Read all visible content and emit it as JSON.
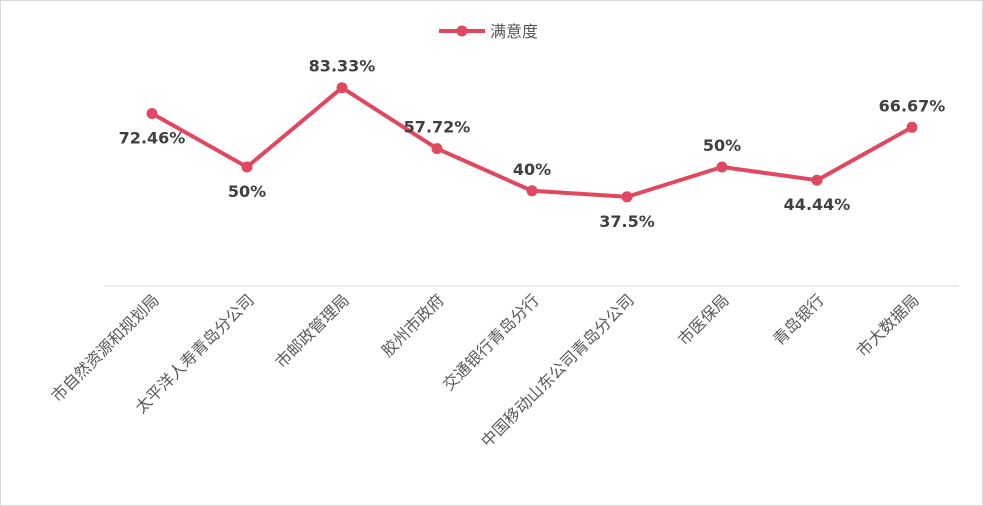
{
  "chart_data": {
    "type": "line",
    "categories": [
      "市自然资源和规划局",
      "太平洋人寿青岛分公司",
      "市邮政管理局",
      "胶州市政府",
      "交通银行青岛分行",
      "中国移动山东公司青岛分公司",
      "市医保局",
      "青岛银行",
      "市大数据局"
    ],
    "series": [
      {
        "name": "满意度",
        "values": [
          72.46,
          50,
          83.33,
          57.72,
          40,
          37.5,
          50,
          44.44,
          66.67
        ],
        "labels": [
          "72.46%",
          "50%",
          "83.33%",
          "57.72%",
          "40%",
          "37.5%",
          "50%",
          "44.44%",
          "66.67%"
        ],
        "color": "#e0485f"
      }
    ],
    "title": "",
    "xlabel": "",
    "ylabel": "",
    "ylim": [
      0,
      100
    ],
    "grid": false,
    "legend_position": "top-center"
  }
}
